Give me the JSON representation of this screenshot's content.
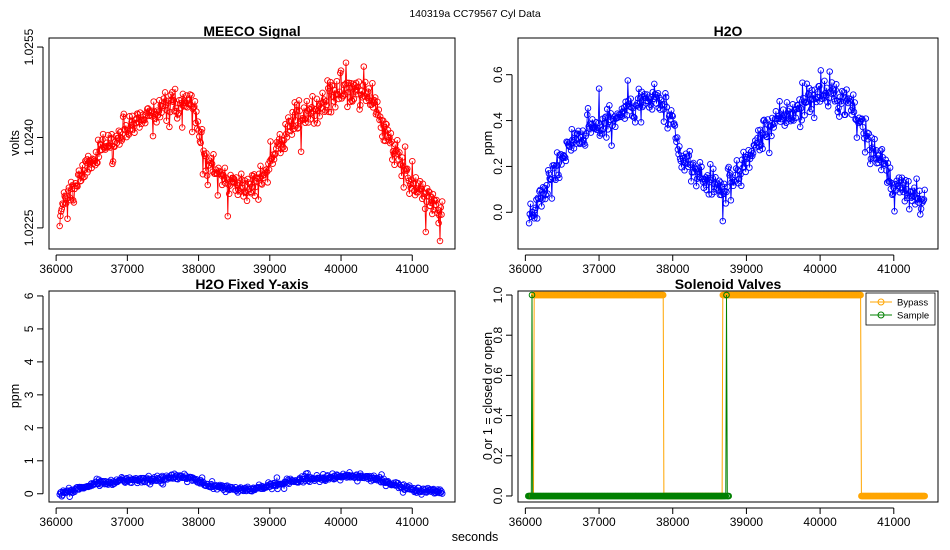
{
  "figure": {
    "suptitle": "140319a    CC79567   Cyl Data",
    "xlabel": "seconds"
  },
  "chart_data": [
    {
      "type": "line",
      "title": "MEECO Signal",
      "xlabel": "",
      "ylabel": "volts",
      "color": "#ff0000",
      "xlim": [
        35900,
        41600
      ],
      "ylim": [
        1.02215,
        1.02565
      ],
      "xticks": [
        36000,
        37000,
        38000,
        39000,
        40000,
        41000
      ],
      "xtick_labels": [
        "36000",
        "37000",
        "38000",
        "39000",
        "40000",
        "41000"
      ],
      "yticks": [
        1.0225,
        1.024,
        1.0255
      ],
      "ytick_labels": [
        "1.0225",
        "1.0240",
        "1.0255"
      ],
      "trend": [
        [
          36050,
          1.0227
        ],
        [
          36300,
          1.02325
        ],
        [
          36600,
          1.0238
        ],
        [
          37000,
          1.02415
        ],
        [
          37400,
          1.02445
        ],
        [
          37800,
          1.0246
        ],
        [
          37950,
          1.0244
        ],
        [
          38100,
          1.0236
        ],
        [
          38400,
          1.0233
        ],
        [
          38700,
          1.02315
        ],
        [
          38900,
          1.0234
        ],
        [
          39300,
          1.0242
        ],
        [
          39700,
          1.0245
        ],
        [
          40000,
          1.0248
        ],
        [
          40400,
          1.02465
        ],
        [
          40700,
          1.0239
        ],
        [
          41000,
          1.0232
        ],
        [
          41400,
          1.0228
        ]
      ],
      "noise": 0.0002,
      "spike": 0.00035
    },
    {
      "type": "line",
      "title": "H2O",
      "xlabel": "",
      "ylabel": "ppm",
      "color": "#0000ff",
      "xlim": [
        35900,
        41600
      ],
      "ylim": [
        -0.16,
        0.76
      ],
      "xticks": [
        36000,
        37000,
        38000,
        39000,
        40000,
        41000
      ],
      "xtick_labels": [
        "36000",
        "37000",
        "38000",
        "39000",
        "40000",
        "41000"
      ],
      "yticks": [
        0,
        0.2,
        0.4,
        0.6
      ],
      "ytick_labels": [
        "0.0",
        "0.2",
        "0.4",
        "0.6"
      ],
      "trend": [
        [
          36050,
          -0.02
        ],
        [
          36300,
          0.13
        ],
        [
          36600,
          0.3
        ],
        [
          37000,
          0.38
        ],
        [
          37400,
          0.45
        ],
        [
          37800,
          0.5
        ],
        [
          37950,
          0.43
        ],
        [
          38100,
          0.24
        ],
        [
          38400,
          0.15
        ],
        [
          38700,
          0.1
        ],
        [
          38900,
          0.17
        ],
        [
          39300,
          0.38
        ],
        [
          39700,
          0.45
        ],
        [
          40000,
          0.52
        ],
        [
          40400,
          0.48
        ],
        [
          40700,
          0.3
        ],
        [
          41000,
          0.12
        ],
        [
          41400,
          0.04
        ]
      ],
      "noise": 0.055,
      "spike": 0.1
    },
    {
      "type": "line",
      "title": "H2O Fixed Y-axis",
      "xlabel": "",
      "ylabel": "ppm",
      "color": "#0000ff",
      "xlim": [
        35900,
        41600
      ],
      "ylim": [
        -0.25,
        6.15
      ],
      "xticks": [
        36000,
        37000,
        38000,
        39000,
        40000,
        41000
      ],
      "xtick_labels": [
        "36000",
        "37000",
        "38000",
        "39000",
        "40000",
        "41000"
      ],
      "yticks": [
        0,
        1,
        2,
        3,
        4,
        5,
        6
      ],
      "ytick_labels": [
        "0",
        "1",
        "2",
        "3",
        "4",
        "5",
        "6"
      ],
      "trend": [
        [
          36050,
          0.02
        ],
        [
          36300,
          0.15
        ],
        [
          36600,
          0.32
        ],
        [
          37000,
          0.4
        ],
        [
          37400,
          0.46
        ],
        [
          37800,
          0.52
        ],
        [
          37950,
          0.45
        ],
        [
          38100,
          0.26
        ],
        [
          38400,
          0.17
        ],
        [
          38700,
          0.12
        ],
        [
          38900,
          0.18
        ],
        [
          39300,
          0.38
        ],
        [
          39700,
          0.46
        ],
        [
          40000,
          0.53
        ],
        [
          40400,
          0.5
        ],
        [
          40700,
          0.32
        ],
        [
          41000,
          0.14
        ],
        [
          41400,
          0.06
        ]
      ],
      "noise": 0.07,
      "spike": 0.12
    },
    {
      "type": "line",
      "title": "Solenoid Valves",
      "xlabel": "",
      "ylabel": "0 or 1 = closed or open",
      "xlim": [
        35900,
        41600
      ],
      "ylim": [
        -0.03,
        1.02
      ],
      "xticks": [
        36000,
        37000,
        38000,
        39000,
        40000,
        41000
      ],
      "xtick_labels": [
        "36000",
        "37000",
        "38000",
        "39000",
        "40000",
        "41000"
      ],
      "yticks": [
        0,
        0.2,
        0.4,
        0.6,
        0.8,
        1.0
      ],
      "ytick_labels": [
        "0.0",
        "0.2",
        "0.4",
        "0.6",
        "0.8",
        "1.0"
      ],
      "legend": {
        "position": "top-right",
        "entries": [
          "Bypass",
          "Sample"
        ]
      },
      "series": [
        {
          "name": "Bypass",
          "color": "#ffa500",
          "steps": [
            [
              36060,
              0
            ],
            [
              36120,
              1
            ],
            [
              37860,
              1
            ],
            [
              37880,
              0
            ],
            [
              38660,
              0
            ],
            [
              38680,
              1
            ],
            [
              40540,
              1
            ],
            [
              40560,
              0
            ],
            [
              41420,
              0
            ]
          ]
        },
        {
          "name": "Sample",
          "color": "#008000",
          "steps": [
            [
              36040,
              0
            ],
            [
              36080,
              0
            ],
            [
              36090,
              1
            ],
            [
              36100,
              0
            ],
            [
              38700,
              0
            ],
            [
              38720,
              0
            ],
            [
              38730,
              1
            ],
            [
              38740,
              0
            ],
            [
              38760,
              0
            ]
          ]
        }
      ]
    }
  ]
}
